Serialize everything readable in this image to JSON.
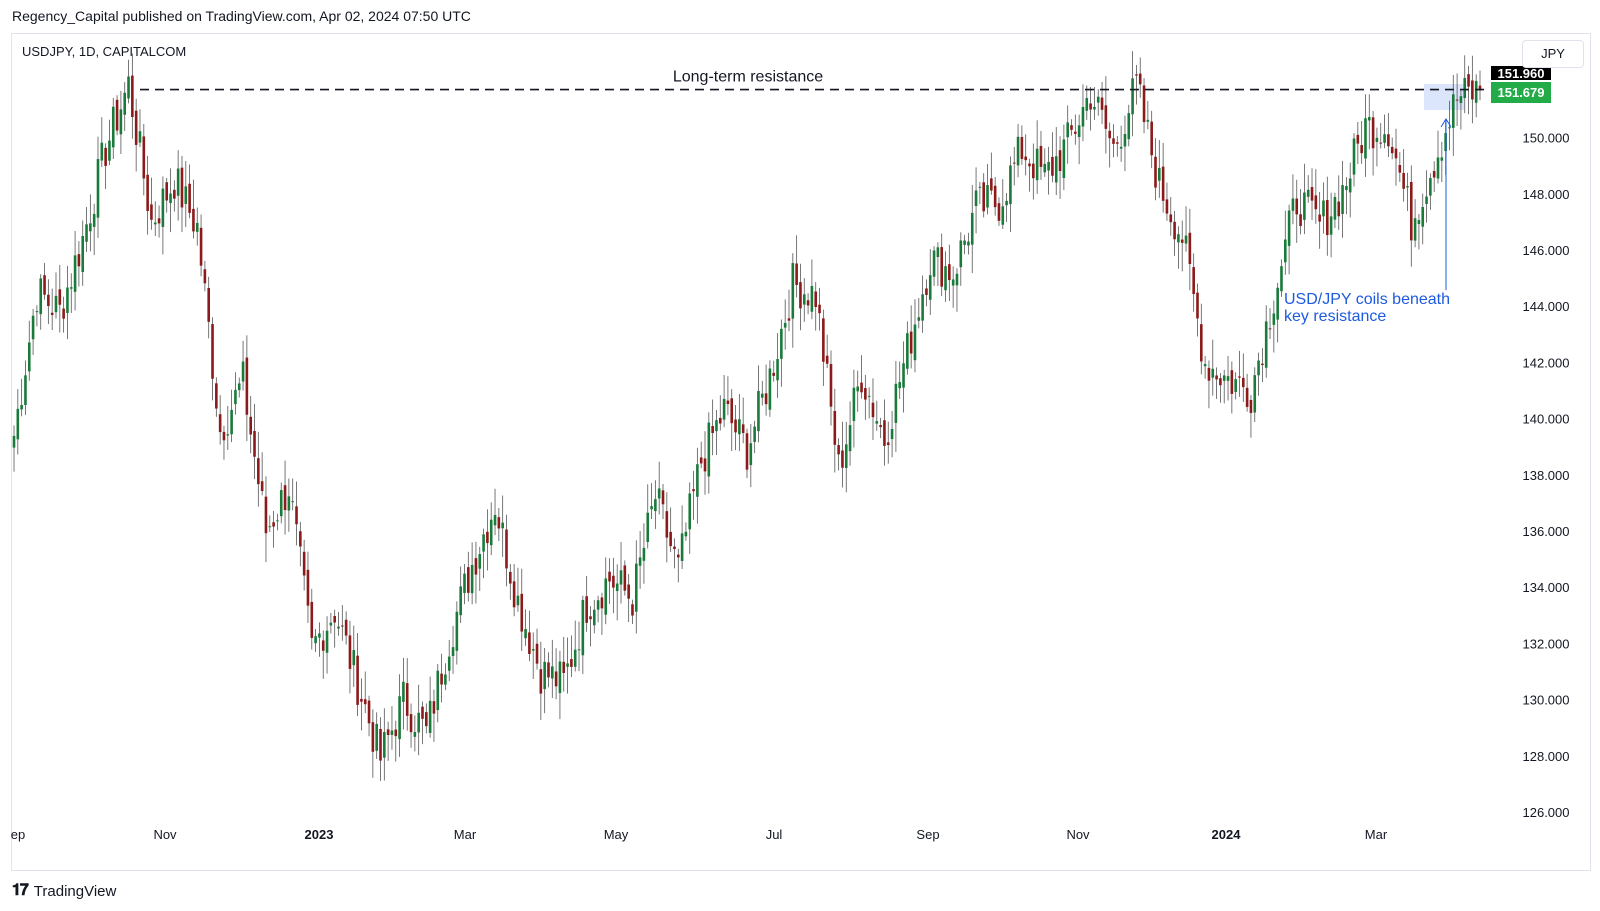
{
  "header": {
    "publisher": "Regency_Capital published on TradingView.com, Apr 02, 2024 07:50 UTC"
  },
  "symbol": {
    "info": "USDJPY, 1D, CAPITALCOM",
    "currency_button": "JPY"
  },
  "footer": {
    "brand": "TradingView"
  },
  "chart_data": {
    "type": "candlestick",
    "symbol": "USDJPY",
    "interval": "1D",
    "source": "CAPITALCOM",
    "y_axis": {
      "ticks": [
        "126.000",
        "128.000",
        "130.000",
        "132.000",
        "134.000",
        "136.000",
        "138.000",
        "140.000",
        "142.000",
        "144.000",
        "146.000",
        "148.000",
        "150.000"
      ],
      "range": [
        126,
        152.5
      ]
    },
    "x_axis": {
      "ticks": [
        {
          "label": "ep",
          "bold": false
        },
        {
          "label": "Nov",
          "bold": false
        },
        {
          "label": "2023",
          "bold": true
        },
        {
          "label": "Mar",
          "bold": false
        },
        {
          "label": "May",
          "bold": false
        },
        {
          "label": "Jul",
          "bold": false
        },
        {
          "label": "Sep",
          "bold": false
        },
        {
          "label": "Nov",
          "bold": false
        },
        {
          "label": "2024",
          "bold": true
        },
        {
          "label": "Mar",
          "bold": false
        }
      ]
    },
    "price_labels": {
      "resistance": "151.960",
      "last": "151.679"
    },
    "resistance_level": 151.96,
    "last_price": 151.679,
    "colors": {
      "up": "#1a7a3a",
      "down": "#8b1a1a",
      "last_price_bg": "#22ab47",
      "resistance_bg": "#000000",
      "annotation": "#1e5ae0",
      "highlight": "#dbe5fb"
    },
    "annotations": [
      {
        "text": "Long-term resistance"
      },
      {
        "text_lines": [
          "USD/JPY coils beneath",
          "key resistance"
        ]
      }
    ],
    "anchors": [
      {
        "date": "Sep",
        "close": 139.4
      },
      {
        "date": "Sep",
        "close": 144.5
      },
      {
        "date": "Oct",
        "close": 143.8
      },
      {
        "date": "Oct",
        "close": 146.4
      },
      {
        "date": "Oct",
        "close": 149.6
      },
      {
        "date": "Oct",
        "close": 151.9
      },
      {
        "date": "Oct",
        "close": 147.0
      },
      {
        "date": "Nov",
        "close": 148.5
      },
      {
        "date": "Nov",
        "close": 146.8
      },
      {
        "date": "Nov",
        "close": 139.6
      },
      {
        "date": "Nov",
        "close": 141.3
      },
      {
        "date": "Dec",
        "close": 136.0
      },
      {
        "date": "Dec",
        "close": 137.6
      },
      {
        "date": "Dec",
        "close": 131.8
      },
      {
        "date": "Dec",
        "close": 133.2
      },
      {
        "date": "Jan",
        "close": 130.6
      },
      {
        "date": "Jan",
        "close": 127.9
      },
      {
        "date": "Jan",
        "close": 130.0
      },
      {
        "date": "Feb",
        "close": 128.8
      },
      {
        "date": "Feb",
        "close": 132.2
      },
      {
        "date": "Feb",
        "close": 134.8
      },
      {
        "date": "Mar",
        "close": 137.0
      },
      {
        "date": "Mar",
        "close": 133.5
      },
      {
        "date": "Mar",
        "close": 131.0
      },
      {
        "date": "Apr",
        "close": 130.6
      },
      {
        "date": "Apr",
        "close": 133.4
      },
      {
        "date": "Apr",
        "close": 134.3
      },
      {
        "date": "May",
        "close": 133.6
      },
      {
        "date": "May",
        "close": 137.2
      },
      {
        "date": "May",
        "close": 134.6
      },
      {
        "date": "May",
        "close": 138.5
      },
      {
        "date": "Jun",
        "close": 140.3
      },
      {
        "date": "Jun",
        "close": 138.9
      },
      {
        "date": "Jun",
        "close": 141.5
      },
      {
        "date": "Jun",
        "close": 144.8
      },
      {
        "date": "Jul",
        "close": 144.4
      },
      {
        "date": "Jul",
        "close": 138.2
      },
      {
        "date": "Jul",
        "close": 141.6
      },
      {
        "date": "Jul",
        "close": 139.3
      },
      {
        "date": "Aug",
        "close": 142.4
      },
      {
        "date": "Aug",
        "close": 145.7
      },
      {
        "date": "Aug",
        "close": 145.2
      },
      {
        "date": "Sep",
        "close": 147.5
      },
      {
        "date": "Sep",
        "close": 147.7
      },
      {
        "date": "Sep",
        "close": 149.6
      },
      {
        "date": "Oct",
        "close": 148.6
      },
      {
        "date": "Oct",
        "close": 149.8
      },
      {
        "date": "Oct",
        "close": 151.6
      },
      {
        "date": "Nov",
        "close": 149.6
      },
      {
        "date": "Nov",
        "close": 151.8
      },
      {
        "date": "Nov",
        "close": 148.3
      },
      {
        "date": "Dec",
        "close": 146.5
      },
      {
        "date": "Dec",
        "close": 142.0
      },
      {
        "date": "Dec",
        "close": 141.4
      },
      {
        "date": "Dec",
        "close": 141.0
      },
      {
        "date": "Jan",
        "close": 144.4
      },
      {
        "date": "Jan",
        "close": 147.8
      },
      {
        "date": "Jan",
        "close": 146.9
      },
      {
        "date": "Feb",
        "close": 148.1
      },
      {
        "date": "Feb",
        "close": 150.4
      },
      {
        "date": "Feb",
        "close": 150.4
      },
      {
        "date": "Mar",
        "close": 147.0
      },
      {
        "date": "Mar",
        "close": 149.2
      },
      {
        "date": "Mar",
        "close": 151.4
      },
      {
        "date": "Apr",
        "close": 151.679
      }
    ]
  }
}
